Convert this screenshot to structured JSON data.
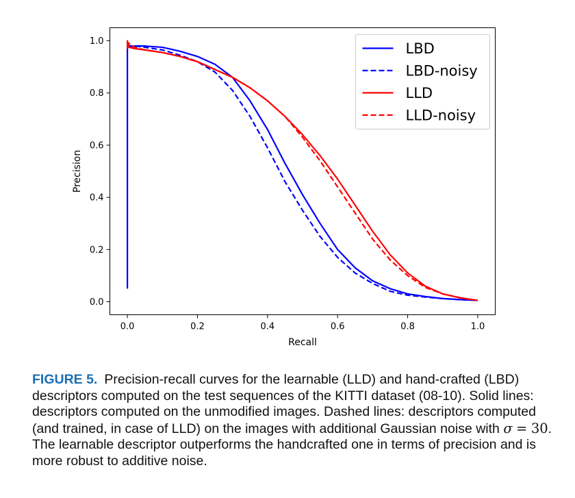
{
  "chart_data": {
    "type": "line",
    "xlabel": "Recall",
    "ylabel": "Precision",
    "xlim": [
      -0.05,
      1.05
    ],
    "ylim": [
      -0.05,
      1.05
    ],
    "xticks": [
      0.0,
      0.2,
      0.4,
      0.6,
      0.8,
      1.0
    ],
    "xtick_labels": [
      "0.0",
      "0.2",
      "0.4",
      "0.6",
      "0.8",
      "1.0"
    ],
    "yticks": [
      0.0,
      0.2,
      0.4,
      0.6,
      0.8,
      1.0
    ],
    "ytick_labels": [
      "0.0",
      "0.2",
      "0.4",
      "0.6",
      "0.8",
      "1.0"
    ],
    "grid": false,
    "legend_position": "top-right",
    "series": [
      {
        "name": "LBD",
        "color": "#0000ff",
        "linestyle": "solid",
        "x": [
          0.0,
          0.0,
          0.0,
          0.005,
          0.02,
          0.05,
          0.1,
          0.15,
          0.2,
          0.25,
          0.3,
          0.35,
          0.4,
          0.45,
          0.5,
          0.55,
          0.6,
          0.65,
          0.7,
          0.75,
          0.8,
          0.85,
          0.9,
          0.95,
          1.0
        ],
        "y": [
          0.05,
          0.95,
          0.99,
          0.975,
          0.98,
          0.98,
          0.975,
          0.96,
          0.94,
          0.91,
          0.86,
          0.77,
          0.66,
          0.53,
          0.41,
          0.3,
          0.2,
          0.13,
          0.08,
          0.05,
          0.03,
          0.02,
          0.012,
          0.008,
          0.005
        ]
      },
      {
        "name": "LBD-noisy",
        "color": "#0000ff",
        "linestyle": "dashed",
        "x": [
          0.0,
          0.005,
          0.02,
          0.05,
          0.1,
          0.15,
          0.2,
          0.25,
          0.3,
          0.35,
          0.4,
          0.45,
          0.5,
          0.55,
          0.6,
          0.65,
          0.7,
          0.75,
          0.8,
          0.85,
          0.9,
          0.95,
          1.0
        ],
        "y": [
          0.975,
          0.98,
          0.98,
          0.975,
          0.965,
          0.945,
          0.92,
          0.88,
          0.81,
          0.71,
          0.59,
          0.46,
          0.35,
          0.25,
          0.17,
          0.11,
          0.07,
          0.04,
          0.025,
          0.018,
          0.012,
          0.008,
          0.005
        ]
      },
      {
        "name": "LLD",
        "color": "#ff0000",
        "linestyle": "solid",
        "x": [
          0.0,
          0.0,
          0.005,
          0.02,
          0.05,
          0.1,
          0.15,
          0.2,
          0.25,
          0.3,
          0.35,
          0.4,
          0.45,
          0.5,
          0.55,
          0.6,
          0.65,
          0.7,
          0.75,
          0.8,
          0.85,
          0.9,
          0.95,
          1.0
        ],
        "y": [
          0.97,
          1.0,
          0.975,
          0.97,
          0.965,
          0.955,
          0.94,
          0.92,
          0.89,
          0.86,
          0.82,
          0.77,
          0.71,
          0.64,
          0.56,
          0.47,
          0.37,
          0.27,
          0.18,
          0.11,
          0.06,
          0.03,
          0.015,
          0.005
        ]
      },
      {
        "name": "LLD-noisy",
        "color": "#ff0000",
        "linestyle": "dashed",
        "x": [
          0.0,
          0.005,
          0.02,
          0.05,
          0.1,
          0.15,
          0.2,
          0.25,
          0.3,
          0.35,
          0.4,
          0.45,
          0.5,
          0.55,
          0.6,
          0.65,
          0.7,
          0.75,
          0.8,
          0.85,
          0.9,
          0.95,
          1.0
        ],
        "y": [
          0.975,
          0.99,
          0.975,
          0.965,
          0.955,
          0.94,
          0.92,
          0.89,
          0.86,
          0.82,
          0.77,
          0.71,
          0.63,
          0.54,
          0.44,
          0.34,
          0.24,
          0.16,
          0.1,
          0.055,
          0.03,
          0.015,
          0.005
        ]
      }
    ]
  },
  "caption": {
    "label": "FIGURE 5.",
    "text_1": "Precision-recall curves for the learnable (LLD) and hand-crafted (LBD) descriptors computed on the test sequences of the KITTI dataset (08-10). Solid lines: descriptors computed on the unmodified images. Dashed lines: descriptors computed (and trained, in case of LLD) on the images with additional Gaussian noise with",
    "sigma_symbol": "σ",
    "equals": "=",
    "sigma_value": "30",
    "text_2": ". The learnable descriptor outperforms the handcrafted one in terms of precision and is more robust to additive noise."
  }
}
